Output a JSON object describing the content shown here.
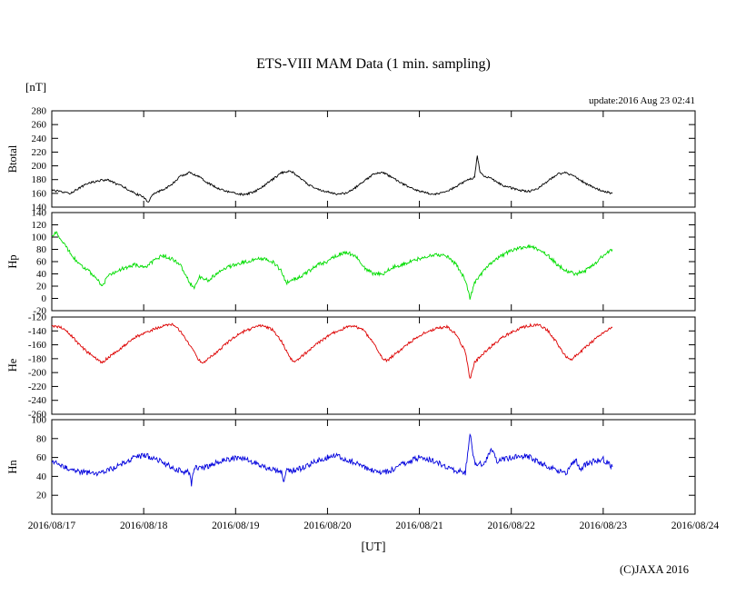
{
  "title": "ETS-VIII MAM Data (1 min. sampling)",
  "unit_label": "[nT]",
  "update_label": "update:2016 Aug 23 02:41",
  "xaxis_label": "[UT]",
  "copyright": "(C)JAXA 2016",
  "chart_data": {
    "type": "line",
    "title": "ETS-VIII MAM Data (1 min. sampling)",
    "xlabel": "[UT]",
    "ylabel": "[nT]",
    "grid": false,
    "legend": "none",
    "xlim_days": [
      0,
      7
    ],
    "x_tick_labels": [
      "2016/08/17",
      "2016/08/18",
      "2016/08/19",
      "2016/08/20",
      "2016/08/21",
      "2016/08/22",
      "2016/08/23",
      "2016/08/24"
    ],
    "panels": [
      {
        "name": "Btotal",
        "color": "#000000",
        "ylim": [
          140,
          280
        ],
        "yticks": [
          280,
          260,
          240,
          220,
          200,
          180,
          160,
          140
        ],
        "noise": 1.5,
        "points": [
          [
            0,
            165
          ],
          [
            0.1,
            162
          ],
          [
            0.2,
            160
          ],
          [
            0.3,
            168
          ],
          [
            0.4,
            175
          ],
          [
            0.5,
            178
          ],
          [
            0.6,
            180
          ],
          [
            0.7,
            174
          ],
          [
            0.8,
            168
          ],
          [
            0.9,
            160
          ],
          [
            1.0,
            155
          ],
          [
            1.05,
            147
          ],
          [
            1.1,
            158
          ],
          [
            1.2,
            165
          ],
          [
            1.3,
            172
          ],
          [
            1.4,
            185
          ],
          [
            1.5,
            190
          ],
          [
            1.6,
            185
          ],
          [
            1.7,
            175
          ],
          [
            1.8,
            168
          ],
          [
            1.9,
            163
          ],
          [
            2.0,
            160
          ],
          [
            2.1,
            158
          ],
          [
            2.2,
            162
          ],
          [
            2.3,
            170
          ],
          [
            2.4,
            180
          ],
          [
            2.5,
            190
          ],
          [
            2.6,
            193
          ],
          [
            2.7,
            182
          ],
          [
            2.8,
            172
          ],
          [
            2.9,
            166
          ],
          [
            3.0,
            162
          ],
          [
            3.1,
            159
          ],
          [
            3.2,
            160
          ],
          [
            3.3,
            168
          ],
          [
            3.4,
            178
          ],
          [
            3.5,
            188
          ],
          [
            3.6,
            190
          ],
          [
            3.7,
            184
          ],
          [
            3.8,
            175
          ],
          [
            3.9,
            168
          ],
          [
            4.0,
            163
          ],
          [
            4.1,
            160
          ],
          [
            4.2,
            159
          ],
          [
            4.3,
            163
          ],
          [
            4.4,
            170
          ],
          [
            4.5,
            178
          ],
          [
            4.6,
            183
          ],
          [
            4.63,
            215
          ],
          [
            4.66,
            190
          ],
          [
            4.7,
            186
          ],
          [
            4.8,
            180
          ],
          [
            4.9,
            172
          ],
          [
            5.0,
            168
          ],
          [
            5.1,
            164
          ],
          [
            5.2,
            163
          ],
          [
            5.3,
            168
          ],
          [
            5.4,
            178
          ],
          [
            5.5,
            188
          ],
          [
            5.6,
            190
          ],
          [
            5.7,
            184
          ],
          [
            5.8,
            175
          ],
          [
            5.9,
            168
          ],
          [
            6.0,
            163
          ],
          [
            6.1,
            160
          ]
        ]
      },
      {
        "name": "Hp",
        "color": "#00dd00",
        "ylim": [
          -20,
          140
        ],
        "yticks": [
          140,
          120,
          100,
          80,
          60,
          40,
          20,
          0,
          -20
        ],
        "noise": 3,
        "points": [
          [
            0,
            100
          ],
          [
            0.05,
            108
          ],
          [
            0.1,
            95
          ],
          [
            0.2,
            75
          ],
          [
            0.3,
            55
          ],
          [
            0.4,
            45
          ],
          [
            0.5,
            30
          ],
          [
            0.55,
            18
          ],
          [
            0.6,
            35
          ],
          [
            0.7,
            45
          ],
          [
            0.8,
            50
          ],
          [
            0.9,
            55
          ],
          [
            1.0,
            50
          ],
          [
            1.1,
            60
          ],
          [
            1.2,
            70
          ],
          [
            1.3,
            65
          ],
          [
            1.4,
            55
          ],
          [
            1.5,
            25
          ],
          [
            1.55,
            18
          ],
          [
            1.6,
            35
          ],
          [
            1.7,
            30
          ],
          [
            1.8,
            40
          ],
          [
            1.9,
            50
          ],
          [
            2.0,
            55
          ],
          [
            2.1,
            60
          ],
          [
            2.2,
            63
          ],
          [
            2.3,
            65
          ],
          [
            2.4,
            60
          ],
          [
            2.5,
            45
          ],
          [
            2.55,
            25
          ],
          [
            2.6,
            30
          ],
          [
            2.7,
            35
          ],
          [
            2.8,
            45
          ],
          [
            2.9,
            55
          ],
          [
            3.0,
            60
          ],
          [
            3.1,
            70
          ],
          [
            3.2,
            75
          ],
          [
            3.3,
            70
          ],
          [
            3.4,
            50
          ],
          [
            3.5,
            40
          ],
          [
            3.6,
            40
          ],
          [
            3.7,
            50
          ],
          [
            3.8,
            55
          ],
          [
            3.9,
            60
          ],
          [
            4.0,
            65
          ],
          [
            4.1,
            70
          ],
          [
            4.2,
            72
          ],
          [
            4.3,
            68
          ],
          [
            4.4,
            55
          ],
          [
            4.5,
            30
          ],
          [
            4.55,
            0
          ],
          [
            4.6,
            25
          ],
          [
            4.7,
            45
          ],
          [
            4.8,
            60
          ],
          [
            4.9,
            70
          ],
          [
            5.0,
            78
          ],
          [
            5.1,
            82
          ],
          [
            5.2,
            85
          ],
          [
            5.3,
            80
          ],
          [
            5.4,
            70
          ],
          [
            5.5,
            55
          ],
          [
            5.6,
            45
          ],
          [
            5.7,
            40
          ],
          [
            5.8,
            45
          ],
          [
            5.9,
            55
          ],
          [
            6.0,
            70
          ],
          [
            6.1,
            80
          ]
        ]
      },
      {
        "name": "He",
        "color": "#dd0000",
        "ylim": [
          -260,
          -120
        ],
        "yticks": [
          -120,
          -140,
          -160,
          -180,
          -200,
          -220,
          -240,
          -260
        ],
        "noise": 2,
        "points": [
          [
            0,
            -132
          ],
          [
            0.1,
            -135
          ],
          [
            0.2,
            -145
          ],
          [
            0.3,
            -160
          ],
          [
            0.4,
            -172
          ],
          [
            0.5,
            -182
          ],
          [
            0.55,
            -185
          ],
          [
            0.6,
            -180
          ],
          [
            0.7,
            -170
          ],
          [
            0.8,
            -160
          ],
          [
            0.9,
            -150
          ],
          [
            1.0,
            -143
          ],
          [
            1.1,
            -138
          ],
          [
            1.2,
            -133
          ],
          [
            1.3,
            -130
          ],
          [
            1.4,
            -140
          ],
          [
            1.5,
            -160
          ],
          [
            1.6,
            -182
          ],
          [
            1.65,
            -185
          ],
          [
            1.7,
            -180
          ],
          [
            1.8,
            -170
          ],
          [
            1.9,
            -158
          ],
          [
            2.0,
            -148
          ],
          [
            2.1,
            -140
          ],
          [
            2.2,
            -135
          ],
          [
            2.3,
            -132
          ],
          [
            2.4,
            -138
          ],
          [
            2.5,
            -155
          ],
          [
            2.6,
            -180
          ],
          [
            2.65,
            -185
          ],
          [
            2.7,
            -178
          ],
          [
            2.8,
            -168
          ],
          [
            2.9,
            -157
          ],
          [
            3.0,
            -148
          ],
          [
            3.1,
            -140
          ],
          [
            3.2,
            -135
          ],
          [
            3.3,
            -133
          ],
          [
            3.4,
            -140
          ],
          [
            3.5,
            -158
          ],
          [
            3.6,
            -180
          ],
          [
            3.65,
            -183
          ],
          [
            3.7,
            -177
          ],
          [
            3.8,
            -167
          ],
          [
            3.9,
            -156
          ],
          [
            4.0,
            -147
          ],
          [
            4.1,
            -140
          ],
          [
            4.2,
            -136
          ],
          [
            4.3,
            -134
          ],
          [
            4.4,
            -145
          ],
          [
            4.5,
            -170
          ],
          [
            4.55,
            -210
          ],
          [
            4.6,
            -185
          ],
          [
            4.7,
            -172
          ],
          [
            4.8,
            -160
          ],
          [
            4.9,
            -150
          ],
          [
            5.0,
            -142
          ],
          [
            5.1,
            -136
          ],
          [
            5.2,
            -132
          ],
          [
            5.3,
            -131
          ],
          [
            5.4,
            -140
          ],
          [
            5.5,
            -158
          ],
          [
            5.6,
            -178
          ],
          [
            5.65,
            -182
          ],
          [
            5.7,
            -176
          ],
          [
            5.8,
            -165
          ],
          [
            5.9,
            -153
          ],
          [
            6.0,
            -143
          ],
          [
            6.1,
            -135
          ]
        ]
      },
      {
        "name": "Hn",
        "color": "#0000dd",
        "ylim": [
          0,
          100
        ],
        "yticks": [
          100,
          80,
          60,
          40,
          20
        ],
        "noise": 3,
        "points": [
          [
            0,
            55
          ],
          [
            0.1,
            52
          ],
          [
            0.2,
            48
          ],
          [
            0.3,
            45
          ],
          [
            0.4,
            44
          ],
          [
            0.5,
            43
          ],
          [
            0.6,
            46
          ],
          [
            0.7,
            50
          ],
          [
            0.8,
            55
          ],
          [
            0.9,
            60
          ],
          [
            1.0,
            62
          ],
          [
            1.1,
            60
          ],
          [
            1.2,
            55
          ],
          [
            1.3,
            50
          ],
          [
            1.4,
            46
          ],
          [
            1.5,
            44
          ],
          [
            1.52,
            32
          ],
          [
            1.55,
            50
          ],
          [
            1.6,
            48
          ],
          [
            1.7,
            50
          ],
          [
            1.8,
            55
          ],
          [
            1.9,
            58
          ],
          [
            2.0,
            60
          ],
          [
            2.1,
            58
          ],
          [
            2.2,
            55
          ],
          [
            2.3,
            50
          ],
          [
            2.4,
            47
          ],
          [
            2.5,
            45
          ],
          [
            2.52,
            33
          ],
          [
            2.55,
            48
          ],
          [
            2.6,
            46
          ],
          [
            2.7,
            48
          ],
          [
            2.8,
            52
          ],
          [
            2.9,
            57
          ],
          [
            3.0,
            60
          ],
          [
            3.1,
            62
          ],
          [
            3.2,
            58
          ],
          [
            3.3,
            54
          ],
          [
            3.4,
            50
          ],
          [
            3.5,
            46
          ],
          [
            3.6,
            44
          ],
          [
            3.7,
            47
          ],
          [
            3.8,
            52
          ],
          [
            3.9,
            56
          ],
          [
            4.0,
            60
          ],
          [
            4.1,
            58
          ],
          [
            4.2,
            55
          ],
          [
            4.3,
            50
          ],
          [
            4.4,
            46
          ],
          [
            4.5,
            44
          ],
          [
            4.55,
            85
          ],
          [
            4.6,
            55
          ],
          [
            4.7,
            52
          ],
          [
            4.78,
            68
          ],
          [
            4.8,
            70
          ],
          [
            4.85,
            55
          ],
          [
            4.9,
            58
          ],
          [
            5.0,
            60
          ],
          [
            5.1,
            62
          ],
          [
            5.2,
            60
          ],
          [
            5.3,
            55
          ],
          [
            5.4,
            50
          ],
          [
            5.5,
            46
          ],
          [
            5.6,
            44
          ],
          [
            5.7,
            58
          ],
          [
            5.75,
            48
          ],
          [
            5.8,
            52
          ],
          [
            5.9,
            56
          ],
          [
            6.0,
            58
          ],
          [
            6.1,
            50
          ]
        ]
      }
    ]
  }
}
